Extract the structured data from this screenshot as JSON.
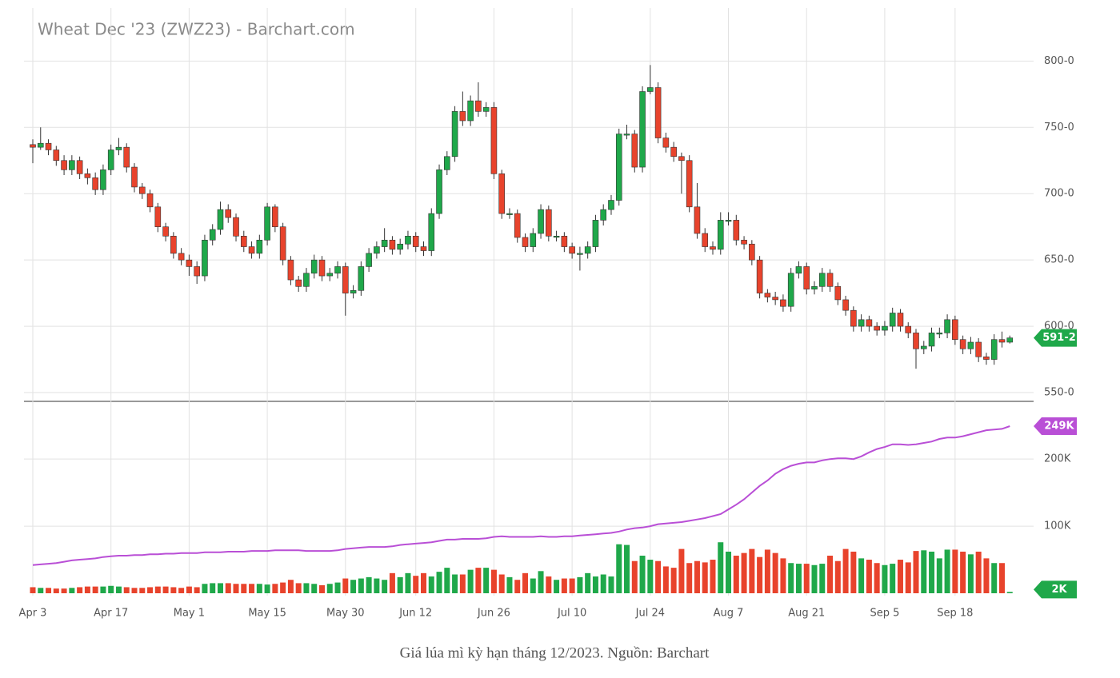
{
  "chart_data": {
    "type": "candlestick",
    "title": "Wheat Dec '23 (ZWZ23) - Barchart.com",
    "caption": "Giá lúa mì kỳ hạn tháng 12/2023. Nguồn: Barchart",
    "up_color": "#1fa84a",
    "down_color": "#e8432c",
    "wick_color": "#333333",
    "categories": [
      "Apr 3",
      null,
      null,
      null,
      null,
      null,
      null,
      null,
      null,
      null,
      "Apr 17",
      null,
      null,
      null,
      null,
      null,
      null,
      null,
      null,
      null,
      "May 1",
      null,
      null,
      null,
      null,
      null,
      null,
      null,
      null,
      null,
      "May 15",
      null,
      null,
      null,
      null,
      null,
      null,
      null,
      null,
      null,
      "May 30",
      null,
      null,
      null,
      null,
      null,
      null,
      null,
      null,
      "Jun 12",
      null,
      null,
      null,
      null,
      null,
      null,
      null,
      null,
      null,
      "Jun 26",
      null,
      null,
      null,
      null,
      null,
      null,
      null,
      null,
      null,
      "Jul 10",
      null,
      null,
      null,
      null,
      null,
      null,
      null,
      null,
      null,
      "Jul 24",
      null,
      null,
      null,
      null,
      null,
      null,
      null,
      null,
      null,
      "Aug 7",
      null,
      null,
      null,
      null,
      null,
      null,
      null,
      null,
      null,
      "Aug 21",
      null,
      null,
      null,
      null,
      null,
      null,
      null,
      null,
      null,
      "Sep 5",
      null,
      null,
      null,
      null,
      null,
      null,
      null,
      null,
      "Sep 18",
      null,
      null,
      null,
      null,
      null,
      null,
      null
    ],
    "candles": [
      [
        737,
        741,
        723,
        735
      ],
      [
        735,
        750,
        733,
        738
      ],
      [
        738,
        741,
        729,
        733
      ],
      [
        733,
        736,
        721,
        725
      ],
      [
        725,
        729,
        714,
        718
      ],
      [
        718,
        729,
        714,
        725
      ],
      [
        725,
        728,
        711,
        715
      ],
      [
        715,
        719,
        707,
        712
      ],
      [
        712,
        716,
        699,
        703
      ],
      [
        703,
        722,
        699,
        718
      ],
      [
        718,
        737,
        714,
        733
      ],
      [
        733,
        742,
        729,
        735
      ],
      [
        735,
        738,
        716,
        720
      ],
      [
        720,
        723,
        701,
        705
      ],
      [
        705,
        708,
        696,
        700
      ],
      [
        700,
        703,
        686,
        690
      ],
      [
        690,
        693,
        671,
        675
      ],
      [
        675,
        678,
        664,
        668
      ],
      [
        668,
        671,
        651,
        655
      ],
      [
        655,
        659,
        646,
        650
      ],
      [
        650,
        654,
        638,
        645
      ],
      [
        645,
        649,
        632,
        638
      ],
      [
        638,
        669,
        634,
        665
      ],
      [
        665,
        677,
        661,
        673
      ],
      [
        673,
        694,
        669,
        688
      ],
      [
        688,
        692,
        678,
        682
      ],
      [
        682,
        685,
        664,
        668
      ],
      [
        668,
        672,
        656,
        660
      ],
      [
        660,
        664,
        651,
        655
      ],
      [
        655,
        669,
        651,
        665
      ],
      [
        665,
        693,
        661,
        690
      ],
      [
        690,
        692,
        671,
        675
      ],
      [
        675,
        678,
        646,
        650
      ],
      [
        650,
        653,
        631,
        635
      ],
      [
        635,
        638,
        626,
        630
      ],
      [
        630,
        644,
        626,
        640
      ],
      [
        640,
        654,
        636,
        650
      ],
      [
        650,
        653,
        634,
        638
      ],
      [
        638,
        644,
        634,
        640
      ],
      [
        640,
        649,
        636,
        645
      ],
      [
        645,
        648,
        608,
        625
      ],
      [
        625,
        631,
        621,
        627
      ],
      [
        627,
        649,
        623,
        645
      ],
      [
        645,
        659,
        641,
        655
      ],
      [
        655,
        664,
        651,
        660
      ],
      [
        660,
        674,
        656,
        665
      ],
      [
        665,
        668,
        654,
        658
      ],
      [
        658,
        666,
        654,
        662
      ],
      [
        662,
        672,
        658,
        668
      ],
      [
        668,
        671,
        656,
        660
      ],
      [
        660,
        664,
        653,
        657
      ],
      [
        657,
        689,
        653,
        685
      ],
      [
        685,
        722,
        681,
        718
      ],
      [
        718,
        732,
        714,
        728
      ],
      [
        728,
        766,
        724,
        762
      ],
      [
        762,
        777,
        751,
        755
      ],
      [
        755,
        774,
        751,
        770
      ],
      [
        770,
        784,
        758,
        762
      ],
      [
        762,
        769,
        758,
        765
      ],
      [
        765,
        769,
        711,
        715
      ],
      [
        715,
        718,
        681,
        685
      ],
      [
        685,
        689,
        681,
        685
      ],
      [
        685,
        688,
        663,
        667
      ],
      [
        667,
        670,
        656,
        660
      ],
      [
        660,
        674,
        656,
        670
      ],
      [
        670,
        692,
        666,
        688
      ],
      [
        688,
        691,
        664,
        668
      ],
      [
        668,
        672,
        664,
        668
      ],
      [
        668,
        671,
        656,
        660
      ],
      [
        660,
        663,
        651,
        655
      ],
      [
        655,
        660,
        642,
        655
      ],
      [
        655,
        664,
        651,
        660
      ],
      [
        660,
        684,
        656,
        680
      ],
      [
        680,
        692,
        676,
        688
      ],
      [
        688,
        699,
        684,
        695
      ],
      [
        695,
        749,
        691,
        745
      ],
      [
        745,
        752,
        741,
        745
      ],
      [
        745,
        748,
        716,
        720
      ],
      [
        720,
        781,
        716,
        777
      ],
      [
        777,
        797,
        775,
        780
      ],
      [
        780,
        784,
        738,
        742
      ],
      [
        742,
        746,
        731,
        735
      ],
      [
        735,
        739,
        724,
        728
      ],
      [
        728,
        731,
        700,
        725
      ],
      [
        725,
        729,
        686,
        690
      ],
      [
        690,
        708,
        666,
        670
      ],
      [
        670,
        674,
        656,
        660
      ],
      [
        660,
        664,
        654,
        658
      ],
      [
        658,
        686,
        654,
        680
      ],
      [
        680,
        686,
        676,
        680
      ],
      [
        680,
        684,
        661,
        665
      ],
      [
        665,
        668,
        658,
        662
      ],
      [
        662,
        665,
        646,
        650
      ],
      [
        650,
        653,
        621,
        625
      ],
      [
        625,
        628,
        618,
        622
      ],
      [
        622,
        626,
        616,
        620
      ],
      [
        620,
        624,
        611,
        615
      ],
      [
        615,
        644,
        611,
        640
      ],
      [
        640,
        649,
        636,
        645
      ],
      [
        645,
        648,
        624,
        628
      ],
      [
        628,
        634,
        624,
        630
      ],
      [
        630,
        644,
        626,
        640
      ],
      [
        640,
        643,
        626,
        630
      ],
      [
        630,
        633,
        616,
        620
      ],
      [
        620,
        623,
        608,
        612
      ],
      [
        612,
        615,
        596,
        600
      ],
      [
        600,
        609,
        596,
        605
      ],
      [
        605,
        608,
        596,
        600
      ],
      [
        600,
        603,
        593,
        597
      ],
      [
        597,
        604,
        593,
        600
      ],
      [
        600,
        614,
        596,
        610
      ],
      [
        610,
        613,
        596,
        600
      ],
      [
        600,
        603,
        591,
        595
      ],
      [
        595,
        598,
        568,
        583
      ],
      [
        583,
        589,
        579,
        585
      ],
      [
        585,
        599,
        581,
        595
      ],
      [
        595,
        599,
        591,
        595
      ],
      [
        595,
        609,
        591,
        605
      ],
      [
        605,
        608,
        586,
        590
      ],
      [
        590,
        593,
        579,
        583
      ],
      [
        583,
        592,
        579,
        588
      ],
      [
        588,
        591,
        573,
        577
      ],
      [
        577,
        580,
        571,
        575
      ],
      [
        575,
        594,
        571,
        590
      ],
      [
        590,
        596,
        584,
        588
      ],
      [
        588,
        593,
        587,
        591.25
      ]
    ],
    "ylim": [
      547,
      840
    ],
    "yticks": [
      {
        "value": 550,
        "label": "550-0"
      },
      {
        "value": 600,
        "label": "600-0"
      },
      {
        "value": 650,
        "label": "650-0"
      },
      {
        "value": 700,
        "label": "700-0"
      },
      {
        "value": 750,
        "label": "750-0"
      },
      {
        "value": 800,
        "label": "800-0"
      }
    ],
    "last_price": {
      "value": 591.25,
      "label": "591-2"
    },
    "grid": true,
    "volume": {
      "values": [
        9000,
        8000,
        8000,
        7000,
        7000,
        8000,
        9000,
        10000,
        10000,
        10000,
        11000,
        10000,
        9000,
        8000,
        8000,
        9000,
        10000,
        10000,
        9000,
        8000,
        10000,
        9000,
        14000,
        15000,
        15000,
        15000,
        14000,
        14000,
        14000,
        14000,
        13000,
        14000,
        16000,
        20000,
        15000,
        15000,
        14000,
        12000,
        14000,
        16000,
        22000,
        20000,
        22000,
        24000,
        22000,
        20000,
        30000,
        24000,
        30000,
        26000,
        30000,
        25000,
        32000,
        38000,
        28000,
        28000,
        35000,
        38000,
        38000,
        35000,
        28000,
        24000,
        20000,
        30000,
        22000,
        33000,
        25000,
        20000,
        22000,
        22000,
        24000,
        30000,
        25000,
        28000,
        25000,
        73000,
        72000,
        48000,
        56000,
        50000,
        48000,
        40000,
        38000,
        66000,
        45000,
        48000,
        46000,
        50000,
        76000,
        62000,
        56000,
        60000,
        66000,
        54000,
        65000,
        60000,
        52000,
        45000,
        44000,
        44000,
        42000,
        44000,
        56000,
        48000,
        66000,
        62000,
        52000,
        50000,
        45000,
        42000,
        44000,
        50000,
        46000,
        63000,
        64000,
        62000,
        52000,
        65000,
        65000,
        62000,
        58000,
        62000,
        52000,
        45000,
        45000,
        2000
      ],
      "ylim": [
        0,
        286000
      ],
      "yticks": [
        {
          "value": 100000,
          "label": "100K"
        },
        {
          "value": 200000,
          "label": "200K"
        }
      ],
      "last": {
        "value": 2000,
        "label": "2K"
      }
    },
    "open_interest": {
      "color": "#b94fd6",
      "values": [
        42000,
        43000,
        44000,
        45000,
        47000,
        49000,
        50000,
        51000,
        52000,
        54000,
        55000,
        56000,
        56000,
        57000,
        57000,
        58000,
        58000,
        59000,
        59000,
        60000,
        60000,
        60000,
        61000,
        61000,
        61000,
        62000,
        62000,
        62000,
        63000,
        63000,
        63000,
        64000,
        64000,
        64000,
        64000,
        63000,
        63000,
        63000,
        63000,
        64000,
        66000,
        67000,
        68000,
        69000,
        69000,
        69000,
        70000,
        72000,
        73000,
        74000,
        75000,
        76000,
        78000,
        80000,
        80000,
        81000,
        81000,
        81000,
        82000,
        84000,
        85000,
        84000,
        84000,
        84000,
        84000,
        85000,
        84000,
        84000,
        85000,
        85000,
        86000,
        87000,
        88000,
        89000,
        90000,
        92000,
        95000,
        97000,
        98000,
        100000,
        103000,
        104000,
        105000,
        106000,
        108000,
        110000,
        112000,
        115000,
        118000,
        125000,
        132000,
        140000,
        150000,
        160000,
        168000,
        178000,
        185000,
        190000,
        193000,
        195000,
        195000,
        198000,
        200000,
        201000,
        201000,
        200000,
        204000,
        210000,
        215000,
        218000,
        222000,
        222000,
        221000,
        222000,
        224000,
        226000,
        230000,
        232000,
        232000,
        234000,
        237000,
        240000,
        243000,
        244000,
        245000,
        249000
      ],
      "last": {
        "value": 249000,
        "label": "249K"
      }
    }
  }
}
